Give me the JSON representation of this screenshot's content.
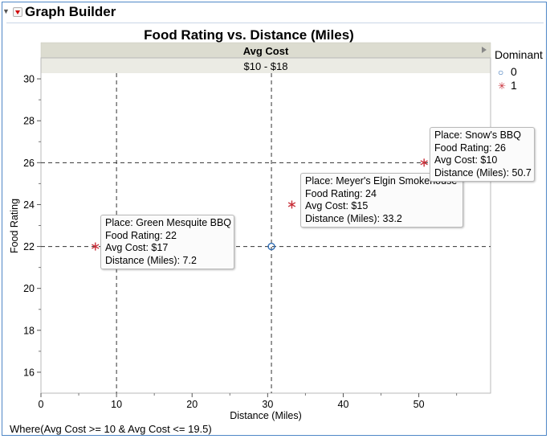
{
  "app": {
    "title": "Graph Builder"
  },
  "chart_data": {
    "type": "scatter",
    "title": "Food Rating vs. Distance (Miles)",
    "xlabel": "Distance (Miles)",
    "ylabel": "Food Rating",
    "group_header": "Avg Cost",
    "group_value": "$10 - $18",
    "xlim": [
      0,
      59.5
    ],
    "ylim": [
      15,
      31
    ],
    "xticks": [
      0,
      10,
      20,
      30,
      40,
      50
    ],
    "yticks": [
      16,
      18,
      20,
      22,
      24,
      26,
      28,
      30
    ],
    "grid": false,
    "legend": {
      "title": "Dominant",
      "placement": "right",
      "entries": [
        {
          "label": "0",
          "marker": "circle",
          "color": "#2f6db5"
        },
        {
          "label": "1",
          "marker": "asterisk",
          "color": "#c8303a"
        }
      ]
    },
    "series": [
      {
        "name": "0",
        "points": [
          {
            "x": 30.5,
            "y": 22
          }
        ]
      },
      {
        "name": "1",
        "points": [
          {
            "x": 7.2,
            "y": 22
          },
          {
            "x": 33.2,
            "y": 24
          },
          {
            "x": 50.7,
            "y": 26
          }
        ]
      }
    ],
    "reference_lines": {
      "vertical": [
        10,
        30.5
      ],
      "horizontal": [
        22,
        26
      ]
    },
    "tooltips": [
      {
        "place": "Place: Green Mesquite BBQ",
        "rating": "Food Rating: 22",
        "cost": "Avg Cost: $17",
        "distance": "Distance (Miles): 7.2"
      },
      {
        "place": "Place: Meyer's Elgin Smokehouse",
        "rating": "Food Rating: 24",
        "cost": "Avg Cost: $15",
        "distance": "Distance (Miles): 33.2"
      },
      {
        "place": "Place: Snow's BBQ",
        "rating": "Food Rating: 26",
        "cost": "Avg Cost: $10",
        "distance": "Distance (Miles): 50.7"
      }
    ]
  },
  "footer": {
    "where": "Where(Avg Cost >= 10 & Avg Cost <= 19.5)"
  }
}
